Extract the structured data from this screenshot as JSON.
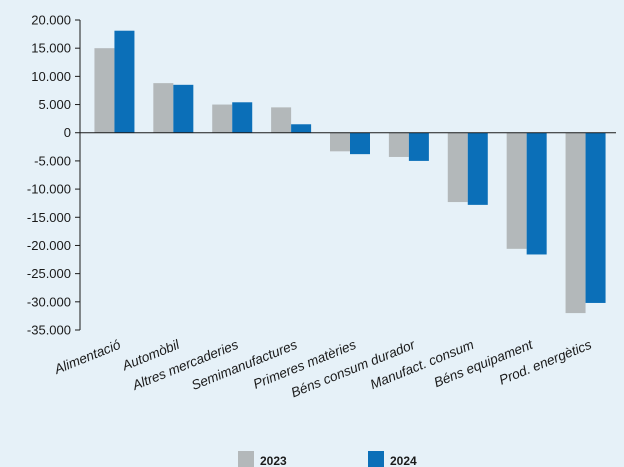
{
  "chart_data": {
    "type": "bar",
    "title": "",
    "xlabel": "",
    "ylabel": "",
    "categories": [
      "Alimentació",
      "Automòbil",
      "Altres mercaderies",
      "Semimanufactures",
      "Primeres matèries",
      "Béns consum durador",
      "Manufact. consum",
      "Béns equipament",
      "Prod. energètics"
    ],
    "series": [
      {
        "name": "2023",
        "color": "#b3b8ba",
        "values": [
          15000,
          8800,
          5000,
          4500,
          -3300,
          -4300,
          -12300,
          -20600,
          -32000
        ]
      },
      {
        "name": "2024",
        "color": "#0b6fb8",
        "values": [
          18100,
          8500,
          5400,
          1500,
          -3800,
          -5000,
          -12800,
          -21600,
          -30200
        ]
      }
    ],
    "ylim": [
      -35000,
      20000
    ],
    "yticks": [
      20000,
      15000,
      10000,
      5000,
      0,
      -5000,
      -10000,
      -15000,
      -20000,
      -25000,
      -30000,
      -35000
    ],
    "ytick_labels": [
      "20.000",
      "15.000",
      "10.000",
      "5.000",
      "0",
      "-5.000",
      "-10.000",
      "-15.000",
      "-20.000",
      "-25.000",
      "-30.000",
      "-35.000"
    ],
    "grid": false,
    "legend_position": "bottom"
  }
}
